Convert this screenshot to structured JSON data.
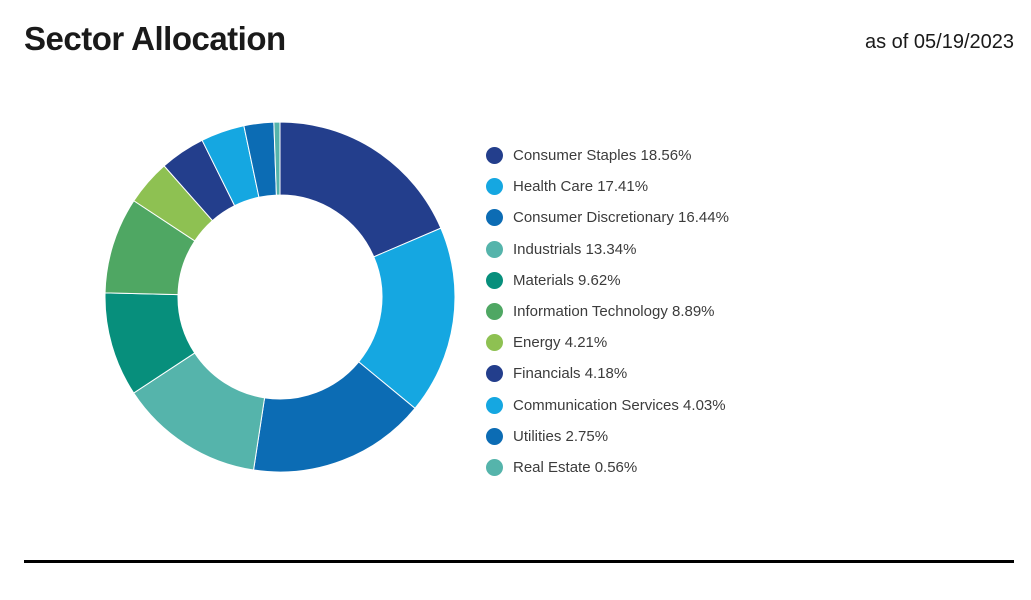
{
  "header": {
    "title": "Sector Allocation",
    "as_of": "as of 05/19/2023"
  },
  "chart_data": {
    "type": "pie",
    "title": "Sector Allocation",
    "subtype": "donut",
    "start_angle_deg": 0,
    "direction": "clockwise",
    "inner_radius_ratio": 0.58,
    "legend_position": "right",
    "label_format": "{name} {value}%",
    "slice_border_color": "#ffffff",
    "series": [
      {
        "name": "Consumer Staples",
        "value": 18.56,
        "color": "#233E8C"
      },
      {
        "name": "Health Care",
        "value": 17.41,
        "color": "#15A7E1"
      },
      {
        "name": "Consumer Discretionary",
        "value": 16.44,
        "color": "#0C6CB4"
      },
      {
        "name": "Industrials",
        "value": 13.34,
        "color": "#55B4AB"
      },
      {
        "name": "Materials",
        "value": 9.62,
        "color": "#078F7C"
      },
      {
        "name": "Information Technology",
        "value": 8.89,
        "color": "#4FA763"
      },
      {
        "name": "Energy",
        "value": 4.21,
        "color": "#8EC152"
      },
      {
        "name": "Financials",
        "value": 4.18,
        "color": "#233E8C"
      },
      {
        "name": "Communication Services",
        "value": 4.03,
        "color": "#15A7E1"
      },
      {
        "name": "Utilities",
        "value": 2.75,
        "color": "#0C6CB4"
      },
      {
        "name": "Real Estate",
        "value": 0.56,
        "color": "#55B4AB"
      }
    ]
  },
  "footer": {
    "rule_color": "#000000"
  }
}
